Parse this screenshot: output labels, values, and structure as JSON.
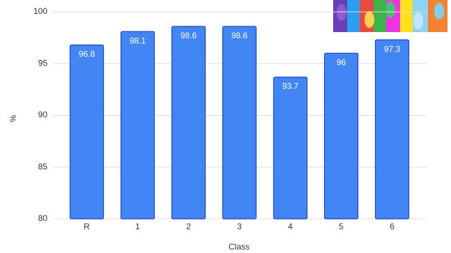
{
  "chart_data": {
    "type": "bar",
    "categories": [
      "R",
      "1",
      "2",
      "3",
      "4",
      "5",
      "6"
    ],
    "values": [
      96.8,
      98.1,
      98.6,
      98.6,
      93.7,
      96,
      97.3
    ],
    "color": "#4285f4",
    "ylim": [
      80,
      100
    ],
    "yticks": [
      80,
      85,
      90,
      95,
      100
    ],
    "grid": true,
    "x_label": "Class",
    "y_label": "%"
  }
}
